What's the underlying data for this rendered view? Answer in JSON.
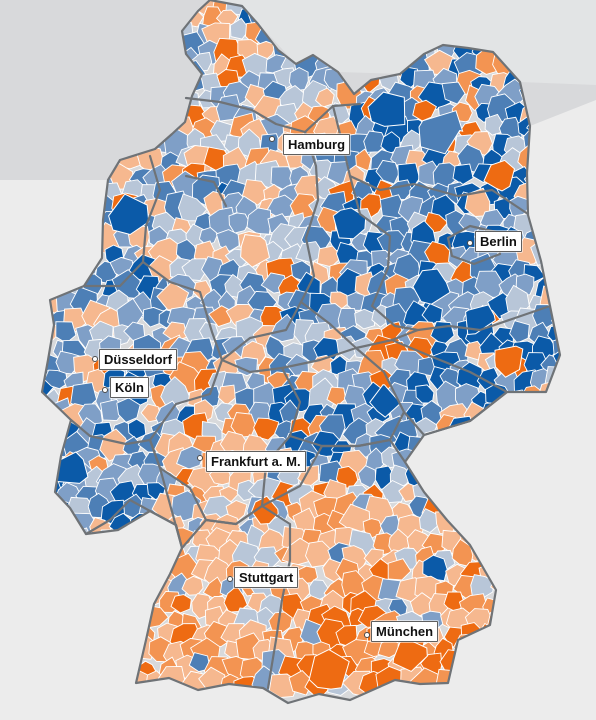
{
  "map": {
    "colors": {
      "background": "#e9eaeb",
      "sea": "#d8d9db",
      "land_outside": "#ececec",
      "state_border": "#6f7377",
      "district_border": "#ffffff",
      "palette": [
        "#0b5aa8",
        "#4d7fb6",
        "#7f9fc7",
        "#b8c6d8",
        "#f6b88f",
        "#f39452",
        "#ee6b12"
      ]
    },
    "cities": [
      {
        "name": "Hamburg"
      },
      {
        "name": "Berlin"
      },
      {
        "name": "Düsseldorf"
      },
      {
        "name": "Köln"
      },
      {
        "name": "Frankfurt a. M."
      },
      {
        "name": "Stuttgart"
      },
      {
        "name": "München"
      }
    ]
  }
}
